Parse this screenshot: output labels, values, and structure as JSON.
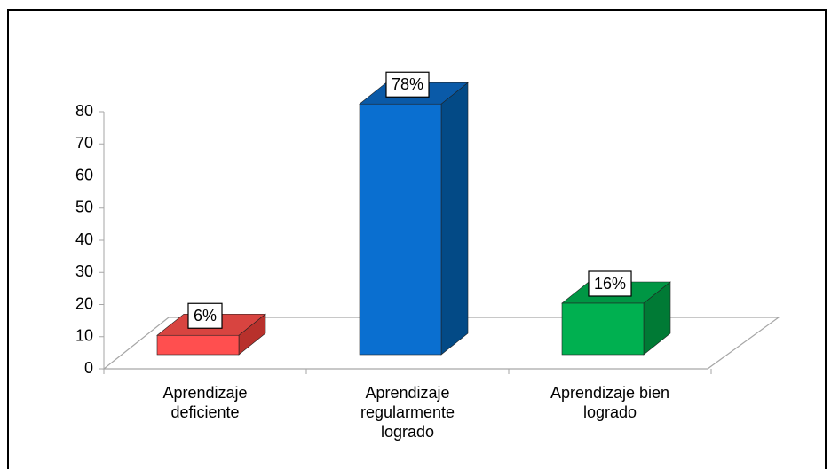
{
  "chart_data": {
    "type": "bar3d",
    "categories": [
      "Aprendizaje deficiente",
      "Aprendizaje regularmente logrado",
      "Aprendizaje bien logrado"
    ],
    "values": [
      6,
      78,
      16
    ],
    "value_labels": [
      "6%",
      "78%",
      "16%"
    ],
    "colors": [
      "#ff4f4f",
      "#0a6fd0",
      "#00b050"
    ],
    "side_colors": [
      "#b8312c",
      "#034a86",
      "#007a35"
    ],
    "top_colors": [
      "#d84440",
      "#0a5aa8",
      "#009644"
    ],
    "ylim": [
      0,
      80
    ],
    "yticks": [
      0,
      10,
      20,
      30,
      40,
      50,
      60,
      70,
      80
    ]
  }
}
